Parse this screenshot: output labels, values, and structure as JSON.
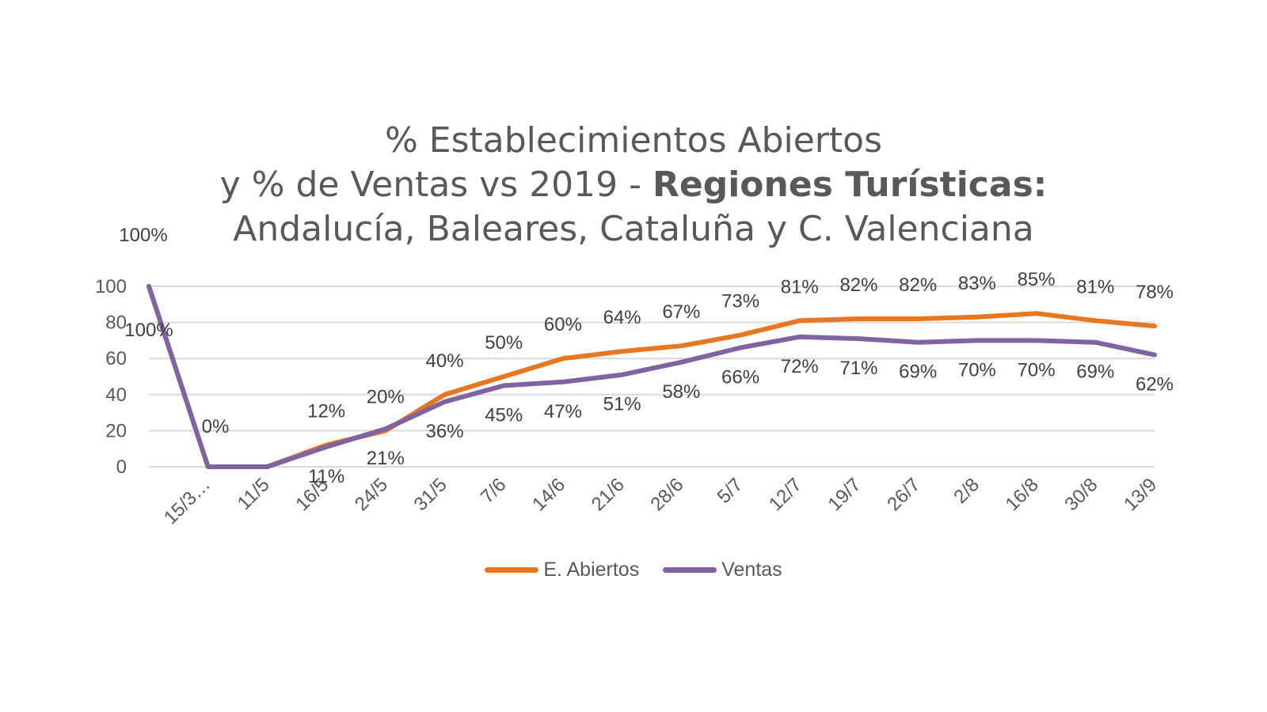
{
  "chart_data": {
    "type": "line",
    "title": {
      "line1": "% Establecimientos  Abiertos",
      "line2_prefix": "y % de Ventas vs 2019 - ",
      "line2_bold": "Regiones Turísticas:",
      "line3": "Andalucía, Baleares, Cataluña y C. Valenciana"
    },
    "categories": [
      "",
      "15/3…",
      "11/5",
      "16/5",
      "24/5",
      "31/5",
      "7/6",
      "14/6",
      "21/6",
      "28/6",
      "5/7",
      "12/7",
      "19/7",
      "26/7",
      "2/8",
      "16/8",
      "30/8",
      "13/9"
    ],
    "y_ticks": [
      "0",
      "20",
      "40",
      "60",
      "80",
      "100"
    ],
    "ylim": [
      0,
      100
    ],
    "grid": true,
    "legend_position": "bottom",
    "series": [
      {
        "name": "E. Abiertos",
        "color": "#E87722",
        "values": [
          100,
          0,
          0,
          12,
          20,
          40,
          50,
          60,
          64,
          67,
          73,
          81,
          82,
          82,
          83,
          85,
          81,
          78
        ],
        "labels": [
          "100%",
          "0%",
          "",
          "12%",
          "20%",
          "40%",
          "50%",
          "60%",
          "64%",
          "67%",
          "73%",
          "81%",
          "82%",
          "82%",
          "83%",
          "85%",
          "81%",
          "78%"
        ]
      },
      {
        "name": "Ventas",
        "color": "#8064A2",
        "values": [
          100,
          0,
          0,
          11,
          21,
          36,
          45,
          47,
          51,
          58,
          66,
          72,
          71,
          69,
          70,
          70,
          69,
          62
        ],
        "labels": [
          "100%",
          "",
          "",
          "11%",
          "21%",
          "36%",
          "45%",
          "47%",
          "51%",
          "58%",
          "66%",
          "72%",
          "71%",
          "69%",
          "70%",
          "70%",
          "69%",
          "62%"
        ]
      }
    ]
  }
}
